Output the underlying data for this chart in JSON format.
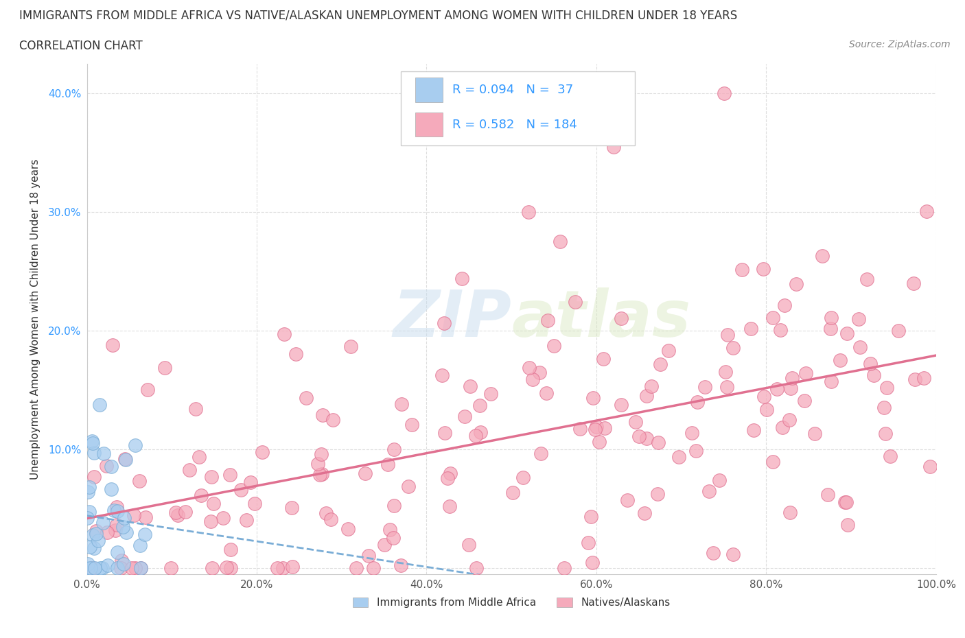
{
  "title": "IMMIGRANTS FROM MIDDLE AFRICA VS NATIVE/ALASKAN UNEMPLOYMENT AMONG WOMEN WITH CHILDREN UNDER 18 YEARS",
  "subtitle": "CORRELATION CHART",
  "source": "Source: ZipAtlas.com",
  "ylabel": "Unemployment Among Women with Children Under 18 years",
  "legend_label_blue": "Immigrants from Middle Africa",
  "legend_label_pink": "Natives/Alaskans",
  "R_blue": 0.094,
  "N_blue": 37,
  "R_pink": 0.582,
  "N_pink": 184,
  "blue_color": "#A8CDEF",
  "blue_edge_color": "#7AADD6",
  "pink_color": "#F5AABB",
  "pink_edge_color": "#E07090",
  "blue_line_color": "#7AADD6",
  "pink_line_color": "#E07090",
  "axis_color": "#3399FF",
  "title_color": "#333333",
  "watermark_color": "#CCDDEE",
  "grid_color": "#DDDDDD",
  "xlim": [
    0.0,
    1.0
  ],
  "ylim": [
    -0.005,
    0.425
  ],
  "xtick_vals": [
    0.0,
    0.2,
    0.4,
    0.6,
    0.8,
    1.0
  ],
  "xtick_labels": [
    "0.0%",
    "20.0%",
    "40.0%",
    "60.0%",
    "80.0%",
    "100.0%"
  ],
  "ytick_vals": [
    0.0,
    0.1,
    0.2,
    0.3,
    0.4
  ],
  "ytick_labels": [
    "",
    "10.0%",
    "20.0%",
    "30.0%",
    "40.0%"
  ]
}
